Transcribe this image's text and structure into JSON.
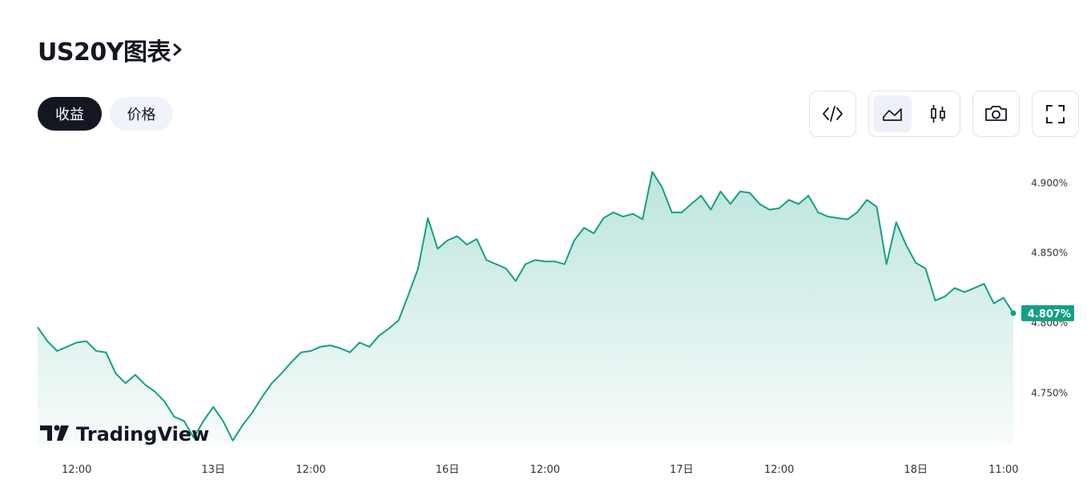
{
  "header": {
    "title": "US20Y图表"
  },
  "tabs": [
    "收益",
    "价格"
  ],
  "watermark": "TradingView",
  "chart_data": {
    "type": "area",
    "categories": [
      null,
      null,
      null,
      null,
      "12:00",
      null,
      null,
      null,
      null,
      null,
      null,
      null,
      null,
      null,
      null,
      null,
      null,
      null,
      "13日",
      null,
      null,
      null,
      null,
      null,
      null,
      null,
      null,
      null,
      "12:00",
      null,
      null,
      null,
      null,
      null,
      null,
      null,
      null,
      null,
      null,
      null,
      null,
      null,
      "16日",
      null,
      null,
      null,
      null,
      null,
      null,
      null,
      null,
      null,
      "12:00",
      null,
      null,
      null,
      null,
      null,
      null,
      null,
      null,
      null,
      null,
      null,
      null,
      null,
      "17日",
      null,
      null,
      null,
      null,
      null,
      null,
      null,
      null,
      null,
      "12:00",
      null,
      null,
      null,
      null,
      null,
      null,
      null,
      null,
      null,
      null,
      null,
      null,
      null,
      "18日",
      null,
      null,
      null,
      null,
      null,
      null,
      null,
      null,
      "11:00",
      null
    ],
    "series": [
      {
        "color": "#12a085",
        "values": [
          4.797,
          4.787,
          4.78,
          4.783,
          4.786,
          4.787,
          4.78,
          4.779,
          4.764,
          4.757,
          4.763,
          4.756,
          4.751,
          4.744,
          4.733,
          4.73,
          4.718,
          4.73,
          4.74,
          4.73,
          4.716,
          4.727,
          4.736,
          4.747,
          4.757,
          4.764,
          4.772,
          4.779,
          4.78,
          4.783,
          4.784,
          4.782,
          4.779,
          4.786,
          4.783,
          4.791,
          4.796,
          4.802,
          4.82,
          4.839,
          4.875,
          4.853,
          4.859,
          4.862,
          4.856,
          4.86,
          4.845,
          4.842,
          4.839,
          4.83,
          4.842,
          4.845,
          4.844,
          4.844,
          4.842,
          4.859,
          4.868,
          4.864,
          4.875,
          4.879,
          4.876,
          4.878,
          4.874,
          4.908,
          4.897,
          4.879,
          4.879,
          4.885,
          4.891,
          4.881,
          4.894,
          4.885,
          4.894,
          4.893,
          4.885,
          4.881,
          4.882,
          4.888,
          4.885,
          4.891,
          4.879,
          4.876,
          4.875,
          4.874,
          4.879,
          4.888,
          4.883,
          4.842,
          4.872,
          4.856,
          4.843,
          4.839,
          4.816,
          4.819,
          4.825,
          4.822,
          4.825,
          4.828,
          4.814,
          4.818,
          4.807
        ]
      }
    ],
    "last_value_label": "4.807%",
    "ylim": [
      4.713,
      4.922
    ],
    "yticks": [
      {
        "value": 4.75,
        "label": "4.750%"
      },
      {
        "value": 4.8,
        "label": "4.800%"
      },
      {
        "value": 4.85,
        "label": "4.850%"
      },
      {
        "value": 4.9,
        "label": "4.900%"
      }
    ],
    "grid": false
  }
}
